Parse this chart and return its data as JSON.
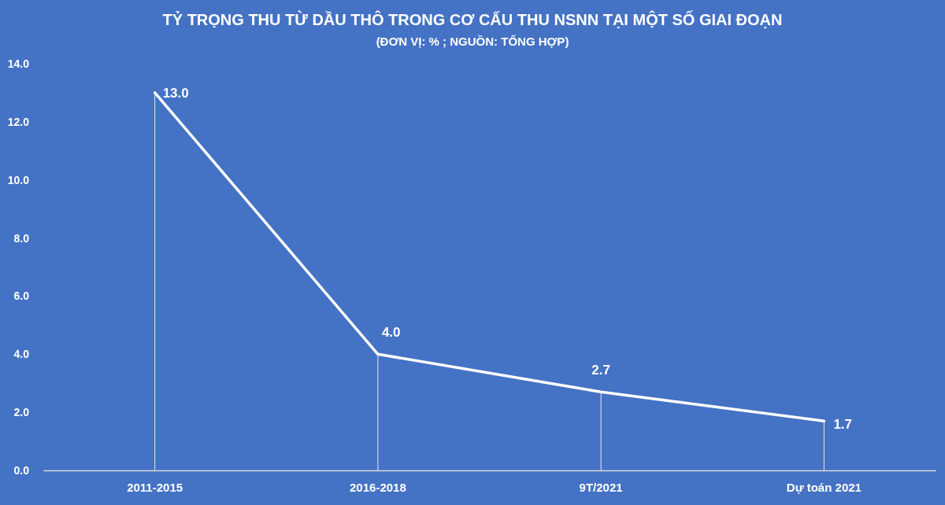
{
  "chart_data": {
    "type": "line",
    "title": "TỶ TRỌNG THU TỪ DẦU THÔ TRONG CƠ CẤU THU NSNN TẠI MỘT SỐ GIAI ĐOẠN",
    "subtitle": "(ĐƠN VỊ: % ; NGUỒN: TỔNG HỢP)",
    "categories": [
      "2011-2015",
      "2016-2018",
      "9T/2021",
      "Dự toán 2021"
    ],
    "series": [
      {
        "color": "#ffffff",
        "values": [
          13.0,
          4.0,
          2.7,
          1.7
        ]
      }
    ],
    "ylim": [
      0,
      14
    ],
    "yticks": [
      {
        "value": 0,
        "label": "0.0"
      },
      {
        "value": 2,
        "label": "2.0"
      },
      {
        "value": 4,
        "label": "4.0"
      },
      {
        "value": 6,
        "label": "6.0"
      },
      {
        "value": 8,
        "label": "8.0"
      },
      {
        "value": 10,
        "label": "10.0"
      },
      {
        "value": 12,
        "label": "12.0"
      },
      {
        "value": 14,
        "label": "14.0"
      }
    ],
    "grid": "x",
    "marker": "none",
    "line_style": "solid",
    "value_labels": [
      "13.0",
      "4.0",
      "2.7",
      "1.7"
    ]
  }
}
